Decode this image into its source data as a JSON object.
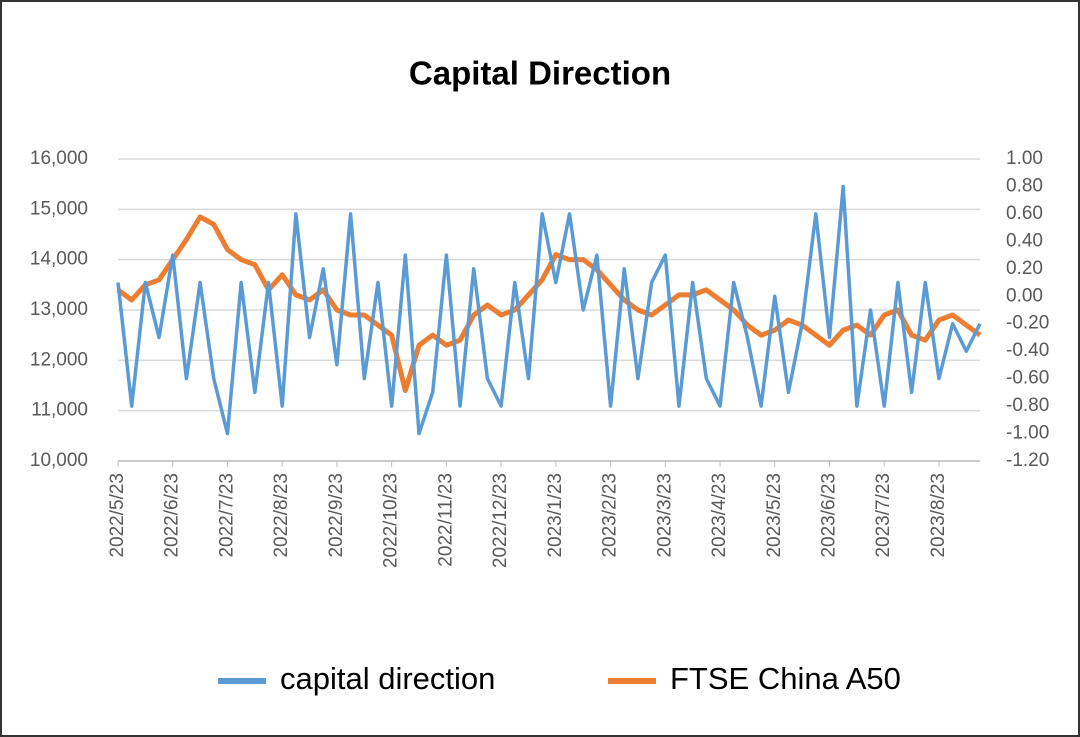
{
  "chart_data": {
    "type": "line",
    "title": "Capital Direction",
    "categories": [
      "2022/5/23",
      null,
      null,
      null,
      "2022/6/23",
      null,
      null,
      null,
      "2022/7/23",
      null,
      null,
      null,
      "2022/8/23",
      null,
      null,
      null,
      "2022/9/23",
      null,
      null,
      null,
      "2022/10/23",
      null,
      null,
      null,
      "2022/11/23",
      null,
      null,
      null,
      "2022/12/23",
      null,
      null,
      null,
      "2023/1/23",
      null,
      null,
      null,
      "2023/2/23",
      null,
      null,
      null,
      "2023/3/23",
      null,
      null,
      null,
      "2023/4/23",
      null,
      null,
      null,
      "2023/5/23",
      null,
      null,
      null,
      "2023/6/23",
      null,
      null,
      null,
      "2023/7/23",
      null,
      null,
      null,
      "2023/8/23",
      null,
      null,
      null
    ],
    "series": [
      {
        "name": "capital direction",
        "color": "#5b9bd5",
        "axis": "y2",
        "values": [
          0.1,
          -0.8,
          0.1,
          -0.3,
          0.3,
          -0.6,
          0.1,
          -0.6,
          -1.0,
          0.1,
          -0.7,
          0.1,
          -0.8,
          0.6,
          -0.3,
          0.2,
          -0.5,
          0.6,
          -0.6,
          0.1,
          -0.8,
          0.3,
          -1.0,
          -0.7,
          0.3,
          -0.8,
          0.2,
          -0.6,
          -0.8,
          0.1,
          -0.6,
          0.6,
          0.1,
          0.6,
          -0.1,
          0.3,
          -0.8,
          0.2,
          -0.6,
          0.1,
          0.3,
          -0.8,
          0.1,
          -0.6,
          -0.8,
          0.1,
          -0.3,
          -0.8,
          0.0,
          -0.7,
          -0.2,
          0.6,
          -0.3,
          0.8,
          -0.8,
          -0.1,
          -0.8,
          0.1,
          -0.7,
          0.1,
          -0.6,
          -0.2,
          -0.4,
          -0.2
        ]
      },
      {
        "name": "FTSE China A50",
        "color": "#ed7d31",
        "values": [
          13400,
          13200,
          13500,
          13600,
          14000,
          14400,
          14850,
          14700,
          14200,
          14000,
          13900,
          13400,
          13700,
          13300,
          13200,
          13400,
          13000,
          12900,
          12900,
          12700,
          12500,
          11400,
          12300,
          12500,
          12300,
          12400,
          12900,
          13100,
          12900,
          13000,
          13300,
          13600,
          14100,
          14000,
          14000,
          13800,
          13500,
          13200,
          13000,
          12900,
          13100,
          13300,
          13300,
          13400,
          13200,
          13000,
          12700,
          12500,
          12600,
          12800,
          12700,
          12500,
          12300,
          12600,
          12700,
          12500,
          12900,
          13000,
          12500,
          12400,
          12800,
          12900,
          12700,
          12500
        ]
      }
    ],
    "ylim": [
      10000,
      16000
    ],
    "yticks": [
      {
        "value": 10000,
        "label": "10,000"
      },
      {
        "value": 11000,
        "label": "11,000"
      },
      {
        "value": 12000,
        "label": "12,000"
      },
      {
        "value": 13000,
        "label": "13,000"
      },
      {
        "value": 14000,
        "label": "14,000"
      },
      {
        "value": 15000,
        "label": "15,000"
      },
      {
        "value": 16000,
        "label": "16,000"
      }
    ],
    "y2lim": [
      -1.2,
      1.0
    ],
    "y2ticks": [
      {
        "value": -1.2,
        "label": "-1.20"
      },
      {
        "value": -1.0,
        "label": "-1.00"
      },
      {
        "value": -0.8,
        "label": "-0.80"
      },
      {
        "value": -0.6,
        "label": "-0.60"
      },
      {
        "value": -0.4,
        "label": "-0.40"
      },
      {
        "value": -0.2,
        "label": "-0.20"
      },
      {
        "value": 0,
        "label": "0.00"
      },
      {
        "value": 0.2,
        "label": "0.20"
      },
      {
        "value": 0.4,
        "label": "0.40"
      },
      {
        "value": 0.6,
        "label": "0.60"
      },
      {
        "value": 0.8,
        "label": "0.80"
      },
      {
        "value": 1.0,
        "label": "1.00"
      }
    ],
    "grid": true,
    "legend": "bottom"
  }
}
